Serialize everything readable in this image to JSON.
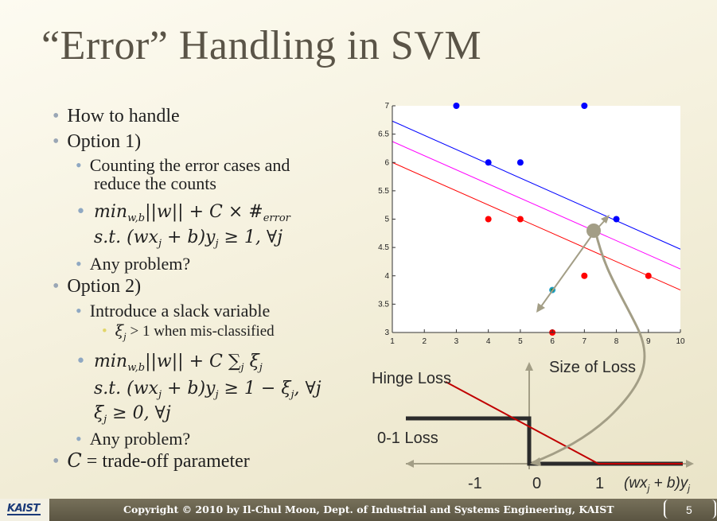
{
  "title": "“Error” Handling in SVM",
  "bullets": {
    "how": "How to handle",
    "opt1": "Option 1)",
    "count_a": "Counting the error cases and",
    "count_b": "reduce the counts",
    "f1_min": "min",
    "f1_sub": "w,b",
    "f1_rest": "||w|| + C × #",
    "f1_err": "error",
    "f1_st": "s.t. (wx",
    "f1_j": "j",
    "f1_rest2": " + b)y",
    "f1_rest3": " ≥ 1, ∀j",
    "prob1": "Any problem?",
    "opt2": "Option 2)",
    "slack": "Introduce a slack variable",
    "xi_a": "ξ",
    "xi_b": " > 1 when mis-classified",
    "f2_min": "min",
    "f2_sub": "w,b",
    "f2_rest": "||w|| + C ∑",
    "f2_rest_b": " ξ",
    "f2_st": "s.t. (wx",
    "f2_rest2": " + b)y",
    "f2_rest3": " ≥ 1 − ξ",
    "f2_rest4": ", ∀j",
    "f2_xi": "ξ",
    "f2_xi_rest": " ≥ 0, ∀j",
    "prob2": "Any problem?",
    "c_var": "C",
    "c_rest": " = trade-off parameter"
  },
  "loss_diagram": {
    "size_label": "Size of Loss",
    "hinge_label": "Hinge Loss",
    "zero_one_label": "0-1 Loss",
    "tick_m1": "-1",
    "tick_0": "0",
    "tick_1": "1",
    "axis_label": "(wx",
    "axis_label_j": "j",
    "axis_label_b": " + b)y",
    "axis_label_j2": "j"
  },
  "chart_data": {
    "type": "scatter",
    "xlim": [
      1,
      10
    ],
    "ylim": [
      3,
      7
    ],
    "xticks": [
      "1",
      "2",
      "3",
      "4",
      "5",
      "6",
      "7",
      "8",
      "9",
      "10"
    ],
    "yticks": [
      "3",
      "3.5",
      "4",
      "4.5",
      "5",
      "5.5",
      "6",
      "6.5",
      "7"
    ],
    "series": [
      {
        "color": "#0000ff",
        "points": [
          [
            3,
            7
          ],
          [
            7,
            7
          ],
          [
            4,
            6
          ],
          [
            5,
            6
          ],
          [
            8,
            5
          ]
        ]
      },
      {
        "color": "#ff0000",
        "points": [
          [
            4,
            5
          ],
          [
            5,
            5
          ],
          [
            7,
            4
          ],
          [
            9,
            4
          ],
          [
            6,
            3
          ]
        ]
      }
    ],
    "misclassified_point": [
      6,
      3.75
    ],
    "lines": [
      {
        "color": "#0000ff",
        "from": [
          1,
          6.73
        ],
        "to": [
          10,
          4.47
        ]
      },
      {
        "color": "#ff00ff",
        "from": [
          1,
          6.37
        ],
        "to": [
          10,
          4.12
        ]
      },
      {
        "color": "#ff0000",
        "from": [
          1,
          6.0
        ],
        "to": [
          10,
          3.75
        ]
      }
    ],
    "grid": false
  },
  "footer": {
    "logo": "KAIST",
    "copyright": "Copyright © 2010 by Il-Chul Moon, Dept. of Industrial and Systems Engineering, KAIST",
    "page": "5"
  }
}
